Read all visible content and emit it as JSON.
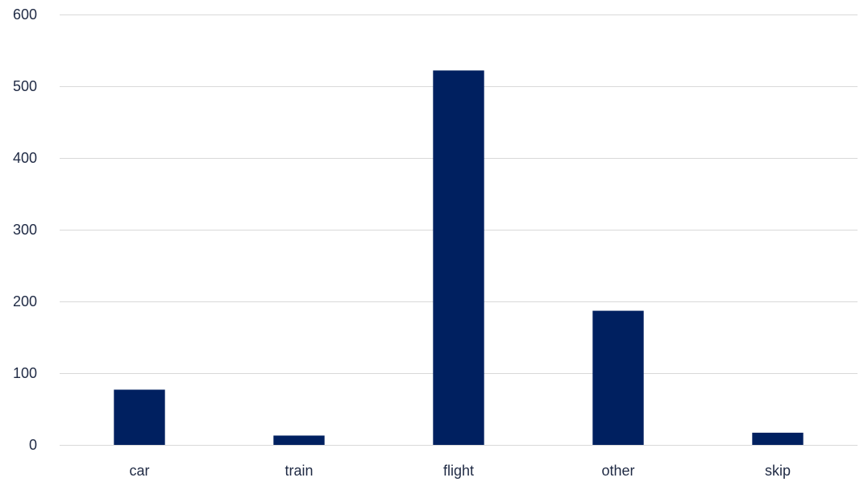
{
  "chart_data": {
    "type": "bar",
    "categories": [
      "car",
      "train",
      "flight",
      "other",
      "skip"
    ],
    "values": [
      77,
      13,
      522,
      187,
      17
    ],
    "title": "",
    "xlabel": "",
    "ylabel": "",
    "ylim": [
      0,
      600
    ],
    "yticks": [
      0,
      100,
      200,
      300,
      400,
      500,
      600
    ],
    "grid": true,
    "legend": "none",
    "bar_color": "#002060",
    "gridline_color": "#d9d9d9"
  }
}
